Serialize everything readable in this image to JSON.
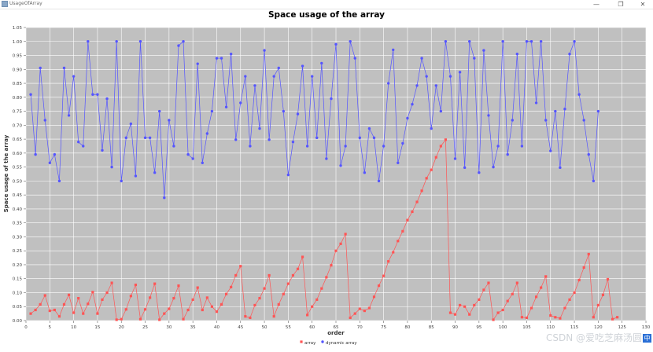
{
  "window": {
    "title": "UsageOfArray",
    "minimize_glyph": "—",
    "maximize_glyph": "❐",
    "close_glyph": "✕"
  },
  "chart_data": {
    "type": "line",
    "title": "Space usage of the array",
    "xlabel": "order",
    "ylabel": "Space usage of the array",
    "xlim": [
      0,
      130
    ],
    "ylim": [
      0,
      1.05
    ],
    "x_ticks": [
      "0",
      "5",
      "10",
      "15",
      "20",
      "25",
      "30",
      "35",
      "40",
      "45",
      "50",
      "55",
      "60",
      "65",
      "70",
      "75",
      "80",
      "85",
      "90",
      "95",
      "100",
      "105",
      "110",
      "115",
      "120",
      "125",
      "130"
    ],
    "y_ticks": [
      "0.00",
      "0.05",
      "0.10",
      "0.15",
      "0.20",
      "0.25",
      "0.30",
      "0.35",
      "0.40",
      "0.45",
      "0.50",
      "0.55",
      "0.60",
      "0.65",
      "0.70",
      "0.75",
      "0.80",
      "0.85",
      "0.90",
      "0.95",
      "1.00",
      "1.05"
    ],
    "grid": true,
    "legend_position": "bottom-center",
    "background": "#c0c0c0",
    "series": [
      {
        "name": "array",
        "color": "#ff5555",
        "x_start": 1,
        "values": [
          0.025,
          0.038,
          0.058,
          0.09,
          0.035,
          0.038,
          0.015,
          0.058,
          0.092,
          0.028,
          0.08,
          0.025,
          0.06,
          0.102,
          0.025,
          0.075,
          0.1,
          0.135,
          0.003,
          0.005,
          0.04,
          0.088,
          0.128,
          0.005,
          0.04,
          0.082,
          0.132,
          0.003,
          0.025,
          0.042,
          0.08,
          0.125,
          0.005,
          0.038,
          0.075,
          0.118,
          0.038,
          0.082,
          0.05,
          0.032,
          0.058,
          0.095,
          0.12,
          0.162,
          0.195,
          0.015,
          0.01,
          0.055,
          0.08,
          0.115,
          0.162,
          0.015,
          0.058,
          0.095,
          0.132,
          0.162,
          0.185,
          0.228,
          0.02,
          0.05,
          0.075,
          0.115,
          0.155,
          0.198,
          0.25,
          0.275,
          0.31,
          0.01,
          0.025,
          0.042,
          0.035,
          0.045,
          0.085,
          0.125,
          0.16,
          0.212,
          0.245,
          0.285,
          0.32,
          0.36,
          0.39,
          0.425,
          0.465,
          0.51,
          0.54,
          0.585,
          0.625,
          0.648,
          0.028,
          0.022,
          0.055,
          0.05,
          0.022,
          0.055,
          0.075,
          0.11,
          0.135,
          0.003,
          0.028,
          0.038,
          0.07,
          0.095,
          0.135,
          0.012,
          0.01,
          0.045,
          0.085,
          0.118,
          0.158,
          0.018,
          0.012,
          0.008,
          0.045,
          0.075,
          0.1,
          0.145,
          0.19,
          0.238,
          0.012,
          0.055,
          0.092,
          0.148,
          0.005,
          0.012
        ]
      },
      {
        "name": "dynamic array",
        "color": "#5555ff",
        "x_start": 1,
        "values": [
          0.81,
          0.595,
          0.905,
          0.718,
          0.565,
          0.595,
          0.5,
          0.905,
          0.735,
          0.875,
          0.64,
          0.625,
          1.0,
          0.81,
          0.81,
          0.61,
          0.795,
          0.55,
          1.0,
          0.5,
          0.655,
          0.705,
          0.518,
          1.0,
          0.655,
          0.655,
          0.53,
          0.75,
          0.44,
          0.718,
          0.625,
          0.985,
          1.0,
          0.595,
          0.58,
          0.92,
          0.565,
          0.67,
          0.75,
          0.94,
          0.94,
          0.765,
          0.955,
          0.648,
          0.78,
          0.875,
          0.625,
          0.842,
          0.688,
          0.968,
          0.648,
          0.875,
          0.905,
          0.75,
          0.522,
          0.64,
          0.74,
          0.912,
          0.625,
          0.875,
          0.655,
          0.922,
          0.58,
          0.795,
          0.99,
          0.555,
          0.625,
          1.0,
          0.94,
          0.655,
          0.53,
          0.688,
          0.655,
          0.5,
          0.625,
          0.85,
          0.97,
          0.565,
          0.635,
          0.725,
          0.775,
          0.842,
          0.94,
          0.875,
          0.688,
          0.842,
          0.75,
          1.0,
          0.875,
          0.58,
          0.89,
          0.548,
          1.0,
          0.94,
          0.53,
          0.968,
          0.735,
          0.55,
          0.625,
          1.0,
          0.595,
          0.718,
          0.955,
          0.625,
          1.0,
          1.0,
          0.78,
          1.0,
          0.718,
          0.608,
          0.75,
          0.548,
          0.758,
          0.955,
          1.0,
          0.81,
          0.718,
          0.595,
          0.5,
          0.75
        ]
      }
    ]
  },
  "watermark": "CSDN @爱吃芝麻汤圆",
  "ime_badge": "中"
}
